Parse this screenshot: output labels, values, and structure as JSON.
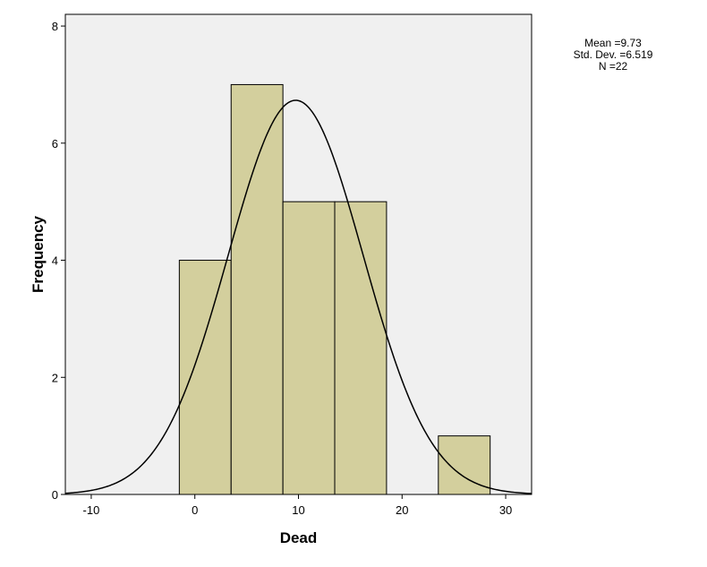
{
  "chart_data": {
    "type": "bar",
    "subtype": "histogram",
    "xlabel": "Dead",
    "ylabel": "Frequency",
    "xlim": [
      -12.5,
      32.5
    ],
    "ylim": [
      0,
      8.2
    ],
    "xticks": [
      -10,
      0,
      10,
      20,
      30
    ],
    "yticks": [
      0,
      2,
      4,
      6,
      8
    ],
    "bins": [
      {
        "from": -1.5,
        "to": 3.5,
        "count": 4
      },
      {
        "from": 3.5,
        "to": 8.5,
        "count": 7
      },
      {
        "from": 8.5,
        "to": 13.5,
        "count": 5
      },
      {
        "from": 13.5,
        "to": 18.5,
        "count": 5
      },
      {
        "from": 18.5,
        "to": 23.5,
        "count": 0
      },
      {
        "from": 23.5,
        "to": 28.5,
        "count": 1
      }
    ],
    "normal_curve": {
      "mean": 9.73,
      "std": 6.519,
      "n": 22,
      "bin_width": 5
    },
    "stats": {
      "mean_label": "Mean =9.73",
      "std_label": "Std. Dev. =6.519",
      "n_label": "N =22"
    },
    "colors": {
      "bar_fill": "#d3cf9d",
      "bar_stroke": "#000000",
      "plot_background": "#f0f0f0",
      "curve": "#000000"
    },
    "grid": false,
    "legend": "none"
  }
}
